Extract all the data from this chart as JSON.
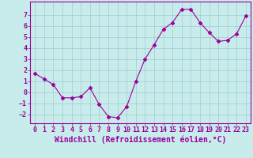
{
  "x": [
    0,
    1,
    2,
    3,
    4,
    5,
    6,
    7,
    8,
    9,
    10,
    11,
    12,
    13,
    14,
    15,
    16,
    17,
    18,
    19,
    20,
    21,
    22,
    23
  ],
  "y": [
    1.7,
    1.2,
    0.7,
    -0.5,
    -0.5,
    -0.4,
    0.4,
    -1.1,
    -2.2,
    -2.3,
    -1.3,
    1.0,
    3.0,
    4.3,
    5.7,
    6.3,
    7.5,
    7.5,
    6.3,
    5.4,
    4.6,
    4.7,
    5.3,
    6.9
  ],
  "line_color": "#990099",
  "marker": "D",
  "marker_size": 2.5,
  "bg_color": "#c8ecec",
  "grid_color": "#a0cccc",
  "xlabel": "Windchill (Refroidissement éolien,°C)",
  "ylabel": "",
  "xlim": [
    -0.5,
    23.5
  ],
  "ylim": [
    -2.8,
    8.2
  ],
  "yticks": [
    -2,
    -1,
    0,
    1,
    2,
    3,
    4,
    5,
    6,
    7
  ],
  "xtick_labels": [
    "0",
    "1",
    "2",
    "3",
    "4",
    "5",
    "6",
    "7",
    "8",
    "9",
    "10",
    "11",
    "12",
    "13",
    "14",
    "15",
    "16",
    "17",
    "18",
    "19",
    "20",
    "21",
    "22",
    "23"
  ],
  "spine_color": "#990099",
  "tick_color": "#990099",
  "label_color": "#990099",
  "font_size": 6,
  "xlabel_fontsize": 7
}
